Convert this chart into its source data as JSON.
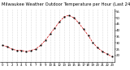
{
  "title": "Milwaukee Weather Outdoor Temperature per Hour (Last 24 Hours)",
  "hours": [
    0,
    1,
    2,
    3,
    4,
    5,
    6,
    7,
    8,
    9,
    10,
    11,
    12,
    13,
    14,
    15,
    16,
    17,
    18,
    19,
    20,
    21,
    22,
    23
  ],
  "temps": [
    28,
    27,
    25,
    24,
    24,
    23,
    24,
    25,
    28,
    32,
    37,
    42,
    47,
    51,
    52,
    50,
    46,
    41,
    36,
    30,
    26,
    23,
    21,
    19
  ],
  "line_color": "#cc0000",
  "marker_color": "#000000",
  "bg_color": "#ffffff",
  "grid_color": "#bbbbbb",
  "ylim": [
    15,
    57
  ],
  "yticks": [
    20,
    25,
    30,
    35,
    40,
    45,
    50,
    55
  ],
  "title_fontsize": 3.8,
  "tick_fontsize": 2.8,
  "fig_width": 1.6,
  "fig_height": 0.87,
  "dpi": 100
}
